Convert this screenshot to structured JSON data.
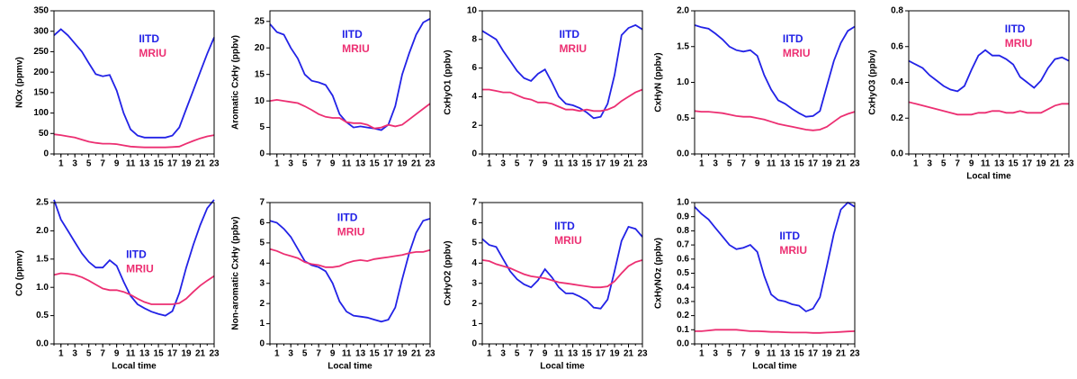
{
  "chart_data": [
    {
      "type": "line",
      "ylabel": "NOx (ppmv)",
      "x": [
        0,
        1,
        2,
        3,
        4,
        5,
        6,
        7,
        8,
        9,
        10,
        11,
        12,
        13,
        14,
        15,
        16,
        17,
        18,
        19,
        20,
        21,
        22,
        23
      ],
      "xlim": [
        0,
        23
      ],
      "xticks": [
        1,
        3,
        5,
        7,
        9,
        11,
        13,
        15,
        17,
        19,
        21,
        23
      ],
      "ylim": [
        0,
        350
      ],
      "yticks": [
        0,
        50,
        100,
        150,
        200,
        250,
        300,
        350
      ],
      "series": [
        {
          "name": "IITD",
          "color": "#2222e6",
          "values": [
            290,
            305,
            290,
            270,
            250,
            222,
            195,
            190,
            193,
            155,
            100,
            60,
            45,
            40,
            40,
            40,
            40,
            45,
            65,
            110,
            155,
            200,
            245,
            285
          ]
        },
        {
          "name": "MRIU",
          "color": "#ec2f72",
          "values": [
            48,
            46,
            43,
            40,
            35,
            30,
            27,
            25,
            25,
            24,
            21,
            18,
            17,
            16,
            16,
            16,
            16,
            17,
            18,
            25,
            32,
            38,
            43,
            46
          ]
        }
      ]
    },
    {
      "type": "line",
      "ylabel": "Aromatic CxHy (ppbv)",
      "x": [
        0,
        1,
        2,
        3,
        4,
        5,
        6,
        7,
        8,
        9,
        10,
        11,
        12,
        13,
        14,
        15,
        16,
        17,
        18,
        19,
        20,
        21,
        22,
        23
      ],
      "xlim": [
        0,
        23
      ],
      "xticks": [
        1,
        3,
        5,
        7,
        9,
        11,
        13,
        15,
        17,
        19,
        21,
        23
      ],
      "ylim": [
        0,
        27
      ],
      "yticks": [
        0,
        5,
        10,
        15,
        20,
        25
      ],
      "series": [
        {
          "name": "IITD",
          "color": "#2222e6",
          "values": [
            24.5,
            23,
            22.5,
            20,
            18,
            15,
            13.8,
            13.5,
            13,
            11,
            7.5,
            6,
            5,
            5.2,
            5,
            4.8,
            4.5,
            5.5,
            9,
            15,
            19,
            22.5,
            24.8,
            25.5
          ]
        },
        {
          "name": "MRIU",
          "color": "#ec2f72",
          "values": [
            10,
            10.2,
            10,
            9.8,
            9.6,
            9,
            8.3,
            7.5,
            7,
            6.8,
            6.8,
            6,
            5.8,
            5.8,
            5.5,
            4.8,
            5,
            5.5,
            5.2,
            5.5,
            6.5,
            7.5,
            8.5,
            9.5
          ]
        }
      ]
    },
    {
      "type": "line",
      "ylabel": "CxHyO1 (ppbv)",
      "x": [
        0,
        1,
        2,
        3,
        4,
        5,
        6,
        7,
        8,
        9,
        10,
        11,
        12,
        13,
        14,
        15,
        16,
        17,
        18,
        19,
        20,
        21,
        22,
        23
      ],
      "xlim": [
        0,
        23
      ],
      "xticks": [
        1,
        3,
        5,
        7,
        9,
        11,
        13,
        15,
        17,
        19,
        21,
        23
      ],
      "ylim": [
        0,
        10
      ],
      "yticks": [
        0,
        2,
        4,
        6,
        8,
        10
      ],
      "series": [
        {
          "name": "IITD",
          "color": "#2222e6",
          "values": [
            8.6,
            8.3,
            8,
            7.2,
            6.5,
            5.8,
            5.3,
            5.1,
            5.6,
            5.9,
            5,
            4,
            3.5,
            3.4,
            3.2,
            2.9,
            2.5,
            2.6,
            3.5,
            5.5,
            8.3,
            8.8,
            9,
            8.7
          ]
        },
        {
          "name": "MRIU",
          "color": "#ec2f72",
          "values": [
            4.5,
            4.5,
            4.4,
            4.3,
            4.3,
            4.1,
            3.9,
            3.8,
            3.6,
            3.6,
            3.5,
            3.3,
            3.1,
            3.1,
            3.0,
            3.1,
            3.0,
            3.0,
            3.1,
            3.3,
            3.7,
            4,
            4.3,
            4.5
          ]
        }
      ]
    },
    {
      "type": "line",
      "ylabel": "CxHyN (ppbv)",
      "x": [
        0,
        1,
        2,
        3,
        4,
        5,
        6,
        7,
        8,
        9,
        10,
        11,
        12,
        13,
        14,
        15,
        16,
        17,
        18,
        19,
        20,
        21,
        22,
        23
      ],
      "xlim": [
        0,
        23
      ],
      "xticks": [
        1,
        3,
        5,
        7,
        9,
        11,
        13,
        15,
        17,
        19,
        21,
        23
      ],
      "ylim": [
        0,
        2
      ],
      "yticks": [
        {
          "value": 0,
          "label": "0.0"
        },
        {
          "value": 0.5,
          "label": "0.5"
        },
        {
          "value": 1,
          "label": "1.0"
        },
        {
          "value": 1.5,
          "label": "1.5"
        },
        {
          "value": 2,
          "label": "2.0"
        }
      ],
      "series": [
        {
          "name": "IITD",
          "color": "#2222e6",
          "values": [
            1.8,
            1.77,
            1.75,
            1.68,
            1.6,
            1.5,
            1.45,
            1.43,
            1.45,
            1.37,
            1.1,
            0.9,
            0.75,
            0.7,
            0.63,
            0.57,
            0.52,
            0.53,
            0.6,
            0.95,
            1.3,
            1.55,
            1.72,
            1.78
          ]
        },
        {
          "name": "MRIU",
          "color": "#ec2f72",
          "values": [
            0.6,
            0.59,
            0.59,
            0.58,
            0.57,
            0.55,
            0.53,
            0.52,
            0.52,
            0.5,
            0.48,
            0.45,
            0.42,
            0.4,
            0.38,
            0.36,
            0.34,
            0.33,
            0.34,
            0.38,
            0.45,
            0.52,
            0.56,
            0.59
          ]
        }
      ]
    },
    {
      "type": "line",
      "ylabel": "CxHyO3 (ppbv)",
      "xlabel": "Local time",
      "x": [
        0,
        1,
        2,
        3,
        4,
        5,
        6,
        7,
        8,
        9,
        10,
        11,
        12,
        13,
        14,
        15,
        16,
        17,
        18,
        19,
        20,
        21,
        22,
        23
      ],
      "xlim": [
        0,
        23
      ],
      "xticks": [
        1,
        3,
        5,
        7,
        9,
        11,
        13,
        15,
        17,
        19,
        21,
        23
      ],
      "ylim": [
        0,
        0.8
      ],
      "yticks": [
        {
          "value": 0,
          "label": "0.0"
        },
        {
          "value": 0.2,
          "label": "0.2"
        },
        {
          "value": 0.4,
          "label": "0.4"
        },
        {
          "value": 0.6,
          "label": "0.6"
        },
        {
          "value": 0.8,
          "label": "0.8"
        }
      ],
      "series": [
        {
          "name": "IITD",
          "color": "#2222e6",
          "values": [
            0.52,
            0.5,
            0.48,
            0.44,
            0.41,
            0.38,
            0.36,
            0.35,
            0.38,
            0.47,
            0.55,
            0.58,
            0.55,
            0.55,
            0.53,
            0.5,
            0.43,
            0.4,
            0.37,
            0.41,
            0.48,
            0.53,
            0.54,
            0.52
          ]
        },
        {
          "name": "MRIU",
          "color": "#ec2f72",
          "values": [
            0.29,
            0.28,
            0.27,
            0.26,
            0.25,
            0.24,
            0.23,
            0.22,
            0.22,
            0.22,
            0.23,
            0.23,
            0.24,
            0.24,
            0.23,
            0.23,
            0.24,
            0.23,
            0.23,
            0.23,
            0.25,
            0.27,
            0.28,
            0.28
          ]
        }
      ]
    },
    {
      "type": "line",
      "ylabel": "CO (ppmv)",
      "xlabel": "Local time",
      "x": [
        0,
        1,
        2,
        3,
        4,
        5,
        6,
        7,
        8,
        9,
        10,
        11,
        12,
        13,
        14,
        15,
        16,
        17,
        18,
        19,
        20,
        21,
        22,
        23
      ],
      "xlim": [
        0,
        23
      ],
      "xticks": [
        1,
        3,
        5,
        7,
        9,
        11,
        13,
        15,
        17,
        19,
        21,
        23
      ],
      "ylim": [
        0,
        2.5
      ],
      "yticks": [
        {
          "value": 0,
          "label": "0.0"
        },
        {
          "value": 0.5,
          "label": "0.5"
        },
        {
          "value": 1,
          "label": "1.0"
        },
        {
          "value": 1.5,
          "label": "1.5"
        },
        {
          "value": 2,
          "label": "2.0"
        },
        {
          "value": 2.5,
          "label": "2.5"
        }
      ],
      "series": [
        {
          "name": "IITD",
          "color": "#2222e6",
          "values": [
            2.55,
            2.2,
            2.0,
            1.8,
            1.6,
            1.45,
            1.35,
            1.35,
            1.48,
            1.38,
            1.1,
            0.85,
            0.7,
            0.63,
            0.57,
            0.53,
            0.5,
            0.58,
            0.9,
            1.35,
            1.75,
            2.1,
            2.4,
            2.55
          ]
        },
        {
          "name": "MRIU",
          "color": "#ec2f72",
          "values": [
            1.22,
            1.25,
            1.24,
            1.22,
            1.18,
            1.12,
            1.05,
            0.98,
            0.95,
            0.95,
            0.92,
            0.87,
            0.8,
            0.74,
            0.7,
            0.7,
            0.7,
            0.7,
            0.72,
            0.8,
            0.92,
            1.03,
            1.12,
            1.2
          ]
        }
      ]
    },
    {
      "type": "line",
      "ylabel": "Non-aromatic CxHy (ppbv)",
      "xlabel": "Local time",
      "x": [
        0,
        1,
        2,
        3,
        4,
        5,
        6,
        7,
        8,
        9,
        10,
        11,
        12,
        13,
        14,
        15,
        16,
        17,
        18,
        19,
        20,
        21,
        22,
        23
      ],
      "xlim": [
        0,
        23
      ],
      "xticks": [
        1,
        3,
        5,
        7,
        9,
        11,
        13,
        15,
        17,
        19,
        21,
        23
      ],
      "ylim": [
        0,
        7
      ],
      "yticks": [
        0,
        1,
        2,
        3,
        4,
        5,
        6,
        7
      ],
      "series": [
        {
          "name": "IITD",
          "color": "#2222e6",
          "values": [
            6.1,
            6.0,
            5.7,
            5.3,
            4.7,
            4.1,
            3.9,
            3.8,
            3.6,
            3.0,
            2.1,
            1.6,
            1.4,
            1.35,
            1.3,
            1.2,
            1.1,
            1.2,
            1.8,
            3.2,
            4.5,
            5.5,
            6.1,
            6.2
          ]
        },
        {
          "name": "MRIU",
          "color": "#ec2f72",
          "values": [
            4.7,
            4.6,
            4.45,
            4.35,
            4.25,
            4.05,
            3.95,
            3.9,
            3.8,
            3.8,
            3.85,
            4.0,
            4.1,
            4.15,
            4.1,
            4.2,
            4.25,
            4.3,
            4.35,
            4.4,
            4.5,
            4.55,
            4.55,
            4.65
          ]
        }
      ]
    },
    {
      "type": "line",
      "ylabel": "CxHyO2 (ppbv)",
      "xlabel": "Local time",
      "x": [
        0,
        1,
        2,
        3,
        4,
        5,
        6,
        7,
        8,
        9,
        10,
        11,
        12,
        13,
        14,
        15,
        16,
        17,
        18,
        19,
        20,
        21,
        22,
        23
      ],
      "xlim": [
        0,
        23
      ],
      "xticks": [
        1,
        3,
        5,
        7,
        9,
        11,
        13,
        15,
        17,
        19,
        21,
        23
      ],
      "ylim": [
        0,
        7
      ],
      "yticks": [
        0,
        1,
        2,
        3,
        4,
        5,
        6,
        7
      ],
      "series": [
        {
          "name": "IITD",
          "color": "#2222e6",
          "values": [
            5.2,
            4.9,
            4.8,
            4.2,
            3.6,
            3.2,
            2.95,
            2.8,
            3.15,
            3.7,
            3.3,
            2.8,
            2.5,
            2.5,
            2.35,
            2.15,
            1.8,
            1.75,
            2.2,
            3.6,
            5.1,
            5.8,
            5.7,
            5.3
          ]
        },
        {
          "name": "MRIU",
          "color": "#ec2f72",
          "values": [
            4.15,
            4.1,
            3.95,
            3.85,
            3.75,
            3.6,
            3.45,
            3.35,
            3.3,
            3.25,
            3.15,
            3.05,
            3.0,
            2.95,
            2.9,
            2.85,
            2.8,
            2.8,
            2.85,
            3.1,
            3.5,
            3.85,
            4.05,
            4.15
          ]
        }
      ]
    },
    {
      "type": "line",
      "ylabel": "CxHyNOz (ppbv)",
      "xlabel": "Local time",
      "x": [
        0,
        1,
        2,
        3,
        4,
        5,
        6,
        7,
        8,
        9,
        10,
        11,
        12,
        13,
        14,
        15,
        16,
        17,
        18,
        19,
        20,
        21,
        22,
        23
      ],
      "xlim": [
        0,
        23
      ],
      "xticks": [
        1,
        3,
        5,
        7,
        9,
        11,
        13,
        15,
        17,
        19,
        21,
        23
      ],
      "ylim": [
        0,
        1
      ],
      "yticks": [
        {
          "value": 0,
          "label": "0.0"
        },
        {
          "value": 0.1,
          "label": "0.1"
        },
        {
          "value": 0.2,
          "label": "0.2"
        },
        {
          "value": 0.3,
          "label": "0.3"
        },
        {
          "value": 0.4,
          "label": "0.4"
        },
        {
          "value": 0.5,
          "label": "0.5"
        },
        {
          "value": 0.6,
          "label": "0.6"
        },
        {
          "value": 0.7,
          "label": "0.7"
        },
        {
          "value": 0.8,
          "label": "0.8"
        },
        {
          "value": 0.9,
          "label": "0.9"
        },
        {
          "value": 1,
          "label": "1.0"
        }
      ],
      "series": [
        {
          "name": "IITD",
          "color": "#2222e6",
          "values": [
            0.97,
            0.92,
            0.88,
            0.82,
            0.76,
            0.7,
            0.67,
            0.68,
            0.7,
            0.65,
            0.48,
            0.35,
            0.31,
            0.3,
            0.28,
            0.27,
            0.23,
            0.25,
            0.33,
            0.55,
            0.78,
            0.95,
            1.0,
            0.97
          ]
        },
        {
          "name": "MRIU",
          "color": "#ec2f72",
          "values": [
            0.09,
            0.09,
            0.095,
            0.1,
            0.1,
            0.1,
            0.1,
            0.095,
            0.09,
            0.09,
            0.088,
            0.085,
            0.085,
            0.082,
            0.08,
            0.08,
            0.08,
            0.078,
            0.078,
            0.08,
            0.082,
            0.085,
            0.088,
            0.09
          ]
        }
      ]
    }
  ]
}
